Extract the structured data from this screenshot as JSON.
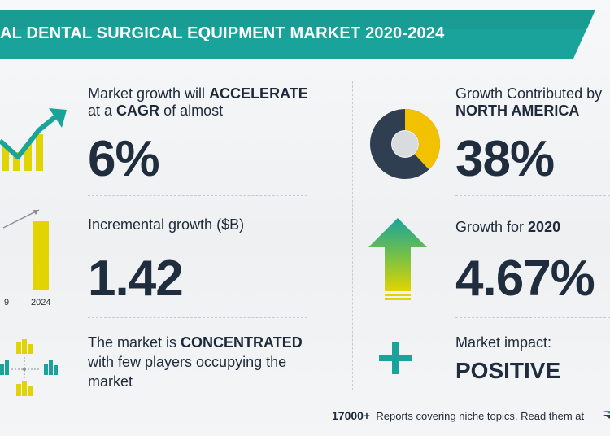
{
  "header": {
    "title": "AL DENTAL SURGICAL EQUIPMENT MARKET 2020-2024"
  },
  "colors": {
    "teal": "#1aa39a",
    "navy": "#1f2d3f",
    "yellow": "#e1d400",
    "green": "#2aa35a"
  },
  "blocks": {
    "growth": {
      "line1_prefix": "Market growth will",
      "line1_bold": "ACCELERATE",
      "line2_prefix": "at a",
      "line2_bold": "CAGR",
      "line2_suffix": "of almost",
      "value": "6%"
    },
    "incremental": {
      "label": "Incremental growth ($B)",
      "value": "1.42"
    },
    "concentration": {
      "line1_prefix": "The market is",
      "line1_bold": "CONCENTRATED",
      "line2": "with few players occupying the",
      "line3": "market"
    },
    "region": {
      "line1": "Growth Contributed by",
      "line2": "NORTH AMERICA",
      "value": "38%",
      "share": 38
    },
    "yoy": {
      "label_prefix": "Growth for",
      "label_bold": "2020",
      "value": "4.67%"
    },
    "impact": {
      "label": "Market impact:",
      "value": "POSITIVE"
    }
  },
  "bar_labels": {
    "left": "9",
    "right": "2024"
  },
  "footer": {
    "count": "17000+",
    "text": "Reports covering niche topics. Read them at"
  }
}
